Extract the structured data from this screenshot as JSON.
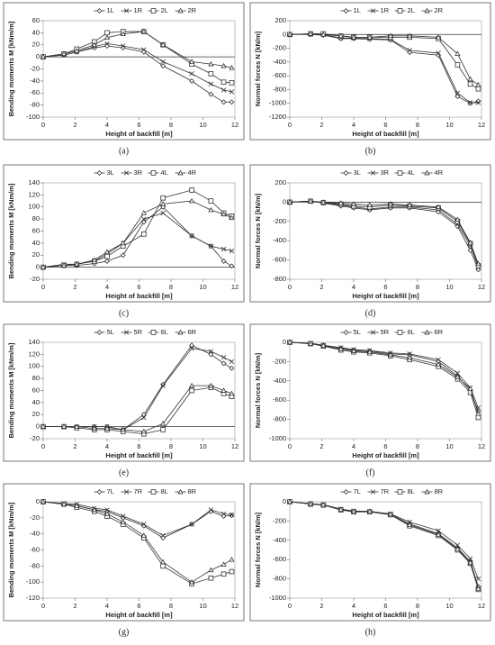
{
  "chart_data": [
    {
      "type": "line",
      "caption": "(a)",
      "y_label": "Bending moments M [kNm/m]",
      "x_label": "Height of backfill  [m]",
      "xlim": [
        0,
        12
      ],
      "xticks": [
        0,
        2,
        4,
        6,
        8,
        10,
        12
      ],
      "ylim": [
        -100,
        60
      ],
      "yticks": [
        -100,
        -80,
        -60,
        -40,
        -20,
        0,
        20,
        40,
        60
      ],
      "x": [
        0,
        1.3,
        2.1,
        3.2,
        4,
        5,
        6.3,
        7.5,
        9.3,
        10.5,
        11.3,
        11.8
      ],
      "series": [
        {
          "name": "1L",
          "marker": "diamond",
          "color": "#333333",
          "values": [
            0,
            3,
            8,
            15,
            18,
            15,
            8,
            -15,
            -40,
            -62,
            -75,
            -75
          ]
        },
        {
          "name": "1R",
          "marker": "x",
          "color": "#333333",
          "values": [
            0,
            3,
            8,
            17,
            22,
            18,
            12,
            -8,
            -28,
            -45,
            -55,
            -58
          ]
        },
        {
          "name": "2L",
          "marker": "square",
          "color": "#333333",
          "values": [
            0,
            5,
            13,
            25,
            40,
            42,
            42,
            20,
            -12,
            -28,
            -42,
            -43
          ]
        },
        {
          "name": "2R",
          "marker": "triangle",
          "color": "#333333",
          "values": [
            0,
            5,
            10,
            20,
            32,
            38,
            42,
            20,
            -8,
            -12,
            -15,
            -18
          ]
        }
      ]
    },
    {
      "type": "line",
      "caption": "(b)",
      "y_label": "Normal forces N [kN/m]",
      "x_label": "Height of backfill  [m]",
      "xlim": [
        0,
        12
      ],
      "xticks": [
        0,
        2,
        4,
        6,
        8,
        10,
        12
      ],
      "ylim": [
        -1200,
        200
      ],
      "yticks": [
        -1200,
        -1000,
        -800,
        -600,
        -400,
        -200,
        0,
        200
      ],
      "x": [
        0,
        1.3,
        2.1,
        3.2,
        4,
        5,
        6.3,
        7.5,
        9.3,
        10.5,
        11.3,
        11.8
      ],
      "series": [
        {
          "name": "1L",
          "marker": "diamond",
          "color": "#333333",
          "values": [
            0,
            0,
            -10,
            -60,
            -60,
            -70,
            -80,
            -260,
            -300,
            -900,
            -1000,
            -970
          ]
        },
        {
          "name": "1R",
          "marker": "x",
          "color": "#333333",
          "values": [
            0,
            5,
            0,
            -50,
            -50,
            -60,
            -70,
            -230,
            -270,
            -850,
            -990,
            -990
          ]
        },
        {
          "name": "2L",
          "marker": "square",
          "color": "#333333",
          "values": [
            0,
            10,
            10,
            -20,
            -40,
            -40,
            -40,
            -40,
            -60,
            -440,
            -720,
            -790
          ]
        },
        {
          "name": "2R",
          "marker": "triangle",
          "color": "#333333",
          "values": [
            0,
            10,
            0,
            -20,
            -40,
            -40,
            -20,
            -20,
            -40,
            -280,
            -650,
            -730
          ]
        }
      ]
    },
    {
      "type": "line",
      "caption": "(c)",
      "y_label": "Bending moments M [kNm/m]",
      "x_label": "Height of backfill  [m]",
      "xlim": [
        0,
        12
      ],
      "xticks": [
        0,
        2,
        4,
        6,
        8,
        10,
        12
      ],
      "ylim": [
        -20,
        140
      ],
      "yticks": [
        -20,
        0,
        20,
        40,
        60,
        80,
        100,
        120,
        140
      ],
      "x": [
        0,
        1.3,
        2.1,
        3.2,
        4,
        5,
        6.3,
        7.5,
        9.3,
        10.5,
        11.3,
        11.8
      ],
      "series": [
        {
          "name": "3L",
          "marker": "diamond",
          "color": "#333333",
          "values": [
            0,
            3,
            3,
            6,
            10,
            20,
            75,
            100,
            52,
            35,
            10,
            2
          ]
        },
        {
          "name": "3R",
          "marker": "x",
          "color": "#333333",
          "values": [
            0,
            5,
            5,
            10,
            22,
            40,
            80,
            90,
            52,
            35,
            30,
            27
          ]
        },
        {
          "name": "4L",
          "marker": "square",
          "color": "#333333",
          "values": [
            0,
            3,
            5,
            10,
            18,
            35,
            55,
            115,
            128,
            110,
            90,
            85
          ]
        },
        {
          "name": "4R",
          "marker": "triangle",
          "color": "#333333",
          "values": [
            0,
            3,
            5,
            12,
            25,
            40,
            90,
            105,
            110,
            95,
            88,
            82
          ]
        }
      ]
    },
    {
      "type": "line",
      "caption": "(d)",
      "y_label": "Normal forces N [kN/m]",
      "x_label": "Height of backfill  [m]",
      "xlim": [
        0,
        12
      ],
      "xticks": [
        0,
        2,
        4,
        6,
        8,
        10,
        12
      ],
      "ylim": [
        -800,
        200
      ],
      "yticks": [
        -800,
        -600,
        -400,
        -200,
        0,
        200
      ],
      "x": [
        0,
        1.3,
        2.1,
        3.2,
        4,
        5,
        6.3,
        7.5,
        9.3,
        10.5,
        11.3,
        11.8
      ],
      "series": [
        {
          "name": "3L",
          "marker": "diamond",
          "color": "#333333",
          "values": [
            0,
            10,
            -10,
            -40,
            -60,
            -80,
            -60,
            -60,
            -100,
            -250,
            -500,
            -700
          ]
        },
        {
          "name": "3R",
          "marker": "x",
          "color": "#333333",
          "values": [
            0,
            10,
            -5,
            -30,
            -50,
            -70,
            -50,
            -50,
            -80,
            -230,
            -450,
            -680
          ]
        },
        {
          "name": "4L",
          "marker": "square",
          "color": "#333333",
          "values": [
            0,
            10,
            -5,
            -20,
            -40,
            -50,
            -30,
            -40,
            -60,
            -200,
            -430,
            -660
          ]
        },
        {
          "name": "4R",
          "marker": "triangle",
          "color": "#333333",
          "values": [
            0,
            10,
            0,
            -10,
            -20,
            -30,
            -20,
            -30,
            -50,
            -180,
            -420,
            -640
          ]
        }
      ]
    },
    {
      "type": "line",
      "caption": "(e)",
      "y_label": "Bending moments M [kNm/m]",
      "x_label": "Height of backfill  [m]",
      "xlim": [
        0,
        12
      ],
      "xticks": [
        0,
        2,
        4,
        6,
        8,
        10,
        12
      ],
      "ylim": [
        -20,
        140
      ],
      "yticks": [
        -20,
        0,
        20,
        40,
        60,
        80,
        100,
        120,
        140
      ],
      "x": [
        0,
        1.3,
        2.1,
        3.2,
        4,
        5,
        6.3,
        7.5,
        9.3,
        10.5,
        11.3,
        11.8
      ],
      "series": [
        {
          "name": "5L",
          "marker": "diamond",
          "color": "#333333",
          "values": [
            0,
            0,
            0,
            0,
            0,
            -5,
            20,
            70,
            135,
            120,
            105,
            97
          ]
        },
        {
          "name": "5R",
          "marker": "x",
          "color": "#333333",
          "values": [
            0,
            0,
            0,
            0,
            0,
            -5,
            15,
            68,
            130,
            125,
            115,
            108
          ]
        },
        {
          "name": "6L",
          "marker": "square",
          "color": "#333333",
          "values": [
            0,
            0,
            -2,
            -5,
            -5,
            -8,
            -12,
            -5,
            60,
            65,
            55,
            50
          ]
        },
        {
          "name": "6R",
          "marker": "triangle",
          "color": "#333333",
          "values": [
            0,
            0,
            0,
            -3,
            -3,
            -5,
            -8,
            5,
            68,
            68,
            60,
            55
          ]
        }
      ]
    },
    {
      "type": "line",
      "caption": "(f)",
      "y_label": "Normal forces N [kN/m]",
      "x_label": "Height of backfill  [m]",
      "xlim": [
        0,
        12
      ],
      "xticks": [
        0,
        2,
        4,
        6,
        8,
        10,
        12
      ],
      "ylim": [
        -1000,
        0
      ],
      "yticks": [
        -1000,
        -800,
        -600,
        -400,
        -200,
        0
      ],
      "x": [
        0,
        1.3,
        2.1,
        3.2,
        4,
        5,
        6.3,
        7.5,
        9.3,
        10.5,
        11.3,
        11.8
      ],
      "series": [
        {
          "name": "5L",
          "marker": "diamond",
          "color": "#333333",
          "values": [
            0,
            -10,
            -30,
            -60,
            -80,
            -90,
            -120,
            -130,
            -200,
            -350,
            -500,
            -720
          ]
        },
        {
          "name": "5R",
          "marker": "x",
          "color": "#333333",
          "values": [
            0,
            -10,
            -30,
            -55,
            -75,
            -85,
            -110,
            -120,
            -180,
            -320,
            -470,
            -680
          ]
        },
        {
          "name": "6L",
          "marker": "square",
          "color": "#333333",
          "values": [
            0,
            -15,
            -40,
            -80,
            -100,
            -110,
            -140,
            -180,
            -250,
            -380,
            -520,
            -780
          ]
        },
        {
          "name": "6R",
          "marker": "triangle",
          "color": "#333333",
          "values": [
            0,
            -15,
            -35,
            -70,
            -90,
            -100,
            -130,
            -160,
            -230,
            -360,
            -480,
            -740
          ]
        }
      ]
    },
    {
      "type": "line",
      "caption": "(g)",
      "y_label": "Bending moments M [kNm/m]",
      "x_label": "Height of backfill  [m]",
      "xlim": [
        0,
        12
      ],
      "xticks": [
        0,
        2,
        4,
        6,
        8,
        10,
        12
      ],
      "ylim": [
        -120,
        0
      ],
      "yticks": [
        -120,
        -100,
        -80,
        -60,
        -40,
        -20,
        0
      ],
      "x": [
        0,
        1.3,
        2.1,
        3.2,
        4,
        5,
        6.3,
        7.5,
        9.3,
        10.5,
        11.3,
        11.8
      ],
      "series": [
        {
          "name": "7L",
          "marker": "diamond",
          "color": "#333333",
          "values": [
            0,
            -3,
            -5,
            -10,
            -12,
            -20,
            -30,
            -45,
            -28,
            -12,
            -18,
            -17
          ]
        },
        {
          "name": "7R",
          "marker": "x",
          "color": "#333333",
          "values": [
            0,
            -2,
            -3,
            -8,
            -10,
            -18,
            -28,
            -42,
            -28,
            -10,
            -15,
            -16
          ]
        },
        {
          "name": "8L",
          "marker": "square",
          "color": "#333333",
          "values": [
            0,
            -3,
            -7,
            -12,
            -18,
            -28,
            -45,
            -80,
            -102,
            -95,
            -90,
            -87
          ]
        },
        {
          "name": "8R",
          "marker": "triangle",
          "color": "#333333",
          "values": [
            0,
            -3,
            -5,
            -10,
            -15,
            -25,
            -42,
            -75,
            -100,
            -85,
            -78,
            -72
          ]
        }
      ]
    },
    {
      "type": "line",
      "caption": "(h)",
      "y_label": "Normal forces N [kN/m]",
      "x_label": "Height of backfill  [m]",
      "xlim": [
        0,
        12
      ],
      "xticks": [
        0,
        2,
        4,
        6,
        8,
        10,
        12
      ],
      "ylim": [
        -1000,
        0
      ],
      "yticks": [
        -1000,
        -800,
        -600,
        -400,
        -200,
        0
      ],
      "x": [
        0,
        1.3,
        2.1,
        3.2,
        4,
        5,
        6.3,
        7.5,
        9.3,
        10.5,
        11.3,
        11.8
      ],
      "series": [
        {
          "name": "7L",
          "marker": "diamond",
          "color": "#333333",
          "values": [
            0,
            -20,
            -30,
            -80,
            -100,
            -100,
            -130,
            -230,
            -330,
            -480,
            -620,
            -880
          ]
        },
        {
          "name": "7R",
          "marker": "x",
          "color": "#333333",
          "values": [
            0,
            -20,
            -30,
            -75,
            -95,
            -100,
            -125,
            -210,
            -300,
            -450,
            -590,
            -800
          ]
        },
        {
          "name": "8L",
          "marker": "square",
          "color": "#333333",
          "values": [
            0,
            -25,
            -35,
            -85,
            -105,
            -105,
            -135,
            -250,
            -350,
            -500,
            -640,
            -910
          ]
        },
        {
          "name": "8R",
          "marker": "triangle",
          "color": "#333333",
          "values": [
            0,
            -20,
            -30,
            -80,
            -100,
            -100,
            -130,
            -240,
            -340,
            -490,
            -630,
            -900
          ]
        }
      ]
    }
  ]
}
